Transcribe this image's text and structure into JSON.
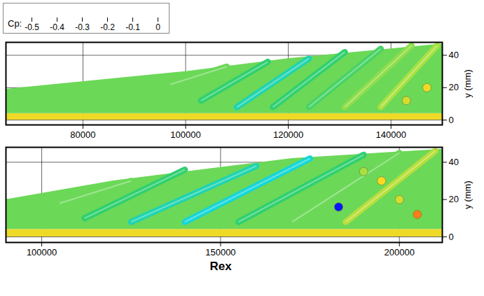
{
  "chart_data": {
    "type": "isosurface",
    "xlabel": "Rex",
    "ylabel": "y (mm)",
    "grid": true,
    "colorbar": {
      "label": "Cp:",
      "range": [
        -0.5,
        0
      ],
      "ticks": [
        -0.5,
        -0.4,
        -0.3,
        -0.2,
        -0.1,
        0
      ]
    },
    "panels": [
      {
        "xlim": [
          65000,
          150000
        ],
        "xticks": [
          80000,
          100000,
          120000,
          140000
        ],
        "ylim": [
          -3,
          48
        ],
        "yticks": [
          0,
          20,
          40
        ],
        "base": {
          "bottom": 0,
          "top": 4,
          "cp": -0.12
        },
        "envelope": {
          "x": [
            65000,
            100000,
            120000,
            150000
          ],
          "bottom": [
            4,
            4,
            4,
            4
          ],
          "top": [
            19,
            30,
            38,
            47
          ],
          "cp": -0.25
        },
        "streaks": {
          "x0": [
            97000,
            103000,
            110000,
            117000,
            124000,
            131000,
            138000
          ],
          "y0": [
            22,
            12,
            8,
            8,
            8,
            8,
            8
          ],
          "x1": [
            108000,
            116000,
            124000,
            131000,
            138000,
            144000,
            149000
          ],
          "y1": [
            33,
            36,
            38,
            42,
            44,
            46,
            46
          ],
          "cp": [
            -0.25,
            -0.3,
            -0.35,
            -0.3,
            -0.28,
            -0.22,
            -0.2
          ]
        },
        "blobs": {
          "x": [
            143000,
            147000
          ],
          "y": [
            12,
            20
          ],
          "cp": [
            -0.15,
            -0.12
          ]
        }
      },
      {
        "xlim": [
          90000,
          212000
        ],
        "xticks": [
          100000,
          150000,
          200000
        ],
        "ylim": [
          -3,
          48
        ],
        "yticks": [
          0,
          20,
          40
        ],
        "base": {
          "bottom": 0,
          "top": 4,
          "cp": -0.12
        },
        "envelope": {
          "x": [
            90000,
            120000,
            170000,
            212000
          ],
          "bottom": [
            4,
            4,
            4,
            4
          ],
          "top": [
            20,
            30,
            42,
            47
          ],
          "cp": -0.25
        },
        "streaks": {
          "x0": [
            105000,
            112000,
            125000,
            140000,
            155000,
            170000,
            185000
          ],
          "y0": [
            18,
            10,
            8,
            8,
            8,
            8,
            8
          ],
          "x1": [
            125000,
            140000,
            160000,
            175000,
            190000,
            200000,
            210000
          ],
          "y1": [
            30,
            36,
            38,
            42,
            44,
            45,
            46
          ],
          "cp": [
            -0.25,
            -0.3,
            -0.35,
            -0.38,
            -0.3,
            -0.25,
            -0.18
          ]
        },
        "blobs": {
          "x": [
            183000,
            195000,
            205000,
            200000,
            190000
          ],
          "y": [
            16,
            30,
            12,
            20,
            35
          ],
          "cp": [
            -0.5,
            -0.1,
            -0.05,
            -0.15,
            -0.2
          ]
        }
      }
    ]
  }
}
